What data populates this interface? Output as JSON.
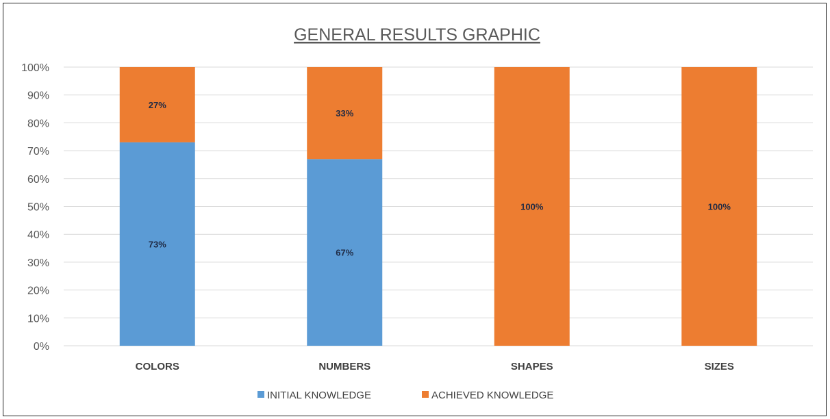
{
  "chart_data": {
    "type": "bar",
    "stacked": true,
    "title": "GENERAL RESULTS GRAPHIC",
    "categories": [
      "COLORS",
      "NUMBERS",
      "SHAPES",
      "SIZES"
    ],
    "series": [
      {
        "name": "INITIAL KNOWLEDGE",
        "color": "#5b9bd5",
        "values": [
          73,
          67,
          0,
          0
        ],
        "labels": [
          "73%",
          "67%",
          "",
          ""
        ]
      },
      {
        "name": "ACHIEVED KNOWLEDGE",
        "color": "#ed7d31",
        "values": [
          27,
          33,
          100,
          100
        ],
        "labels": [
          "27%",
          "33%",
          "100%",
          "100%"
        ]
      }
    ],
    "ylim": [
      0,
      100
    ],
    "yticks": [
      "0%",
      "10%",
      "20%",
      "30%",
      "40%",
      "50%",
      "60%",
      "70%",
      "80%",
      "90%",
      "100%"
    ],
    "grid": true,
    "legend_position": "bottom"
  }
}
